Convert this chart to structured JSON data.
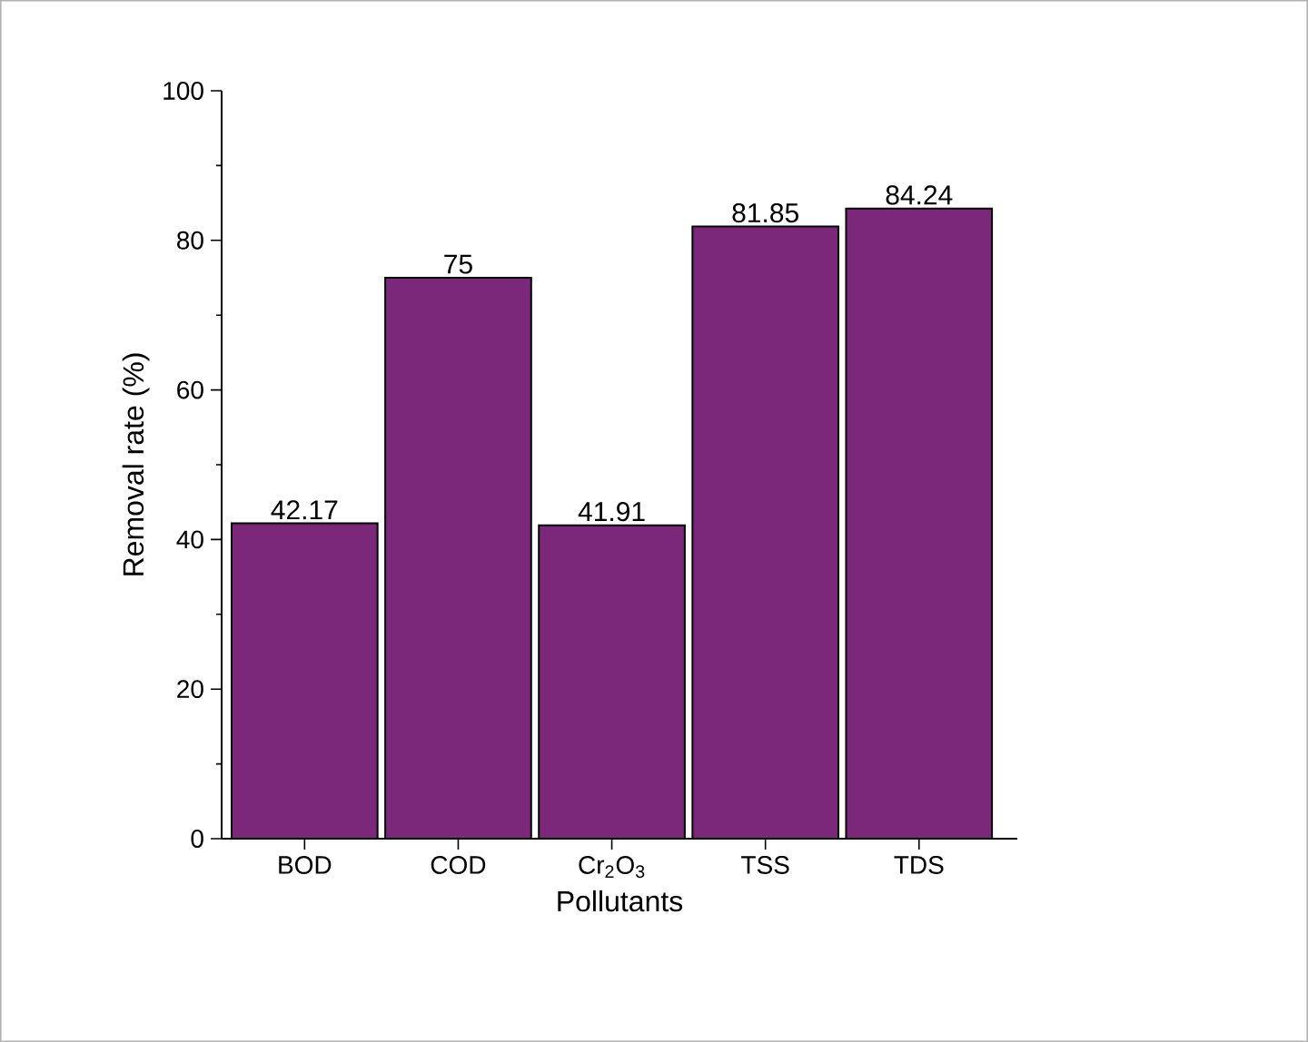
{
  "chart_data": {
    "type": "bar",
    "xlabel": "Pollutants",
    "ylabel": "Removal rate (%)",
    "categories": [
      "BOD",
      "COD",
      "Cr$_{2}$O$_{3}$",
      "TSS",
      "TDS"
    ],
    "values": [
      42.17,
      75,
      41.91,
      81.85,
      84.24
    ],
    "color": "#7b287b",
    "ylim": [
      0,
      100
    ],
    "yticks": [
      0,
      20,
      40,
      60,
      80,
      100
    ],
    "data_labels": true
  }
}
